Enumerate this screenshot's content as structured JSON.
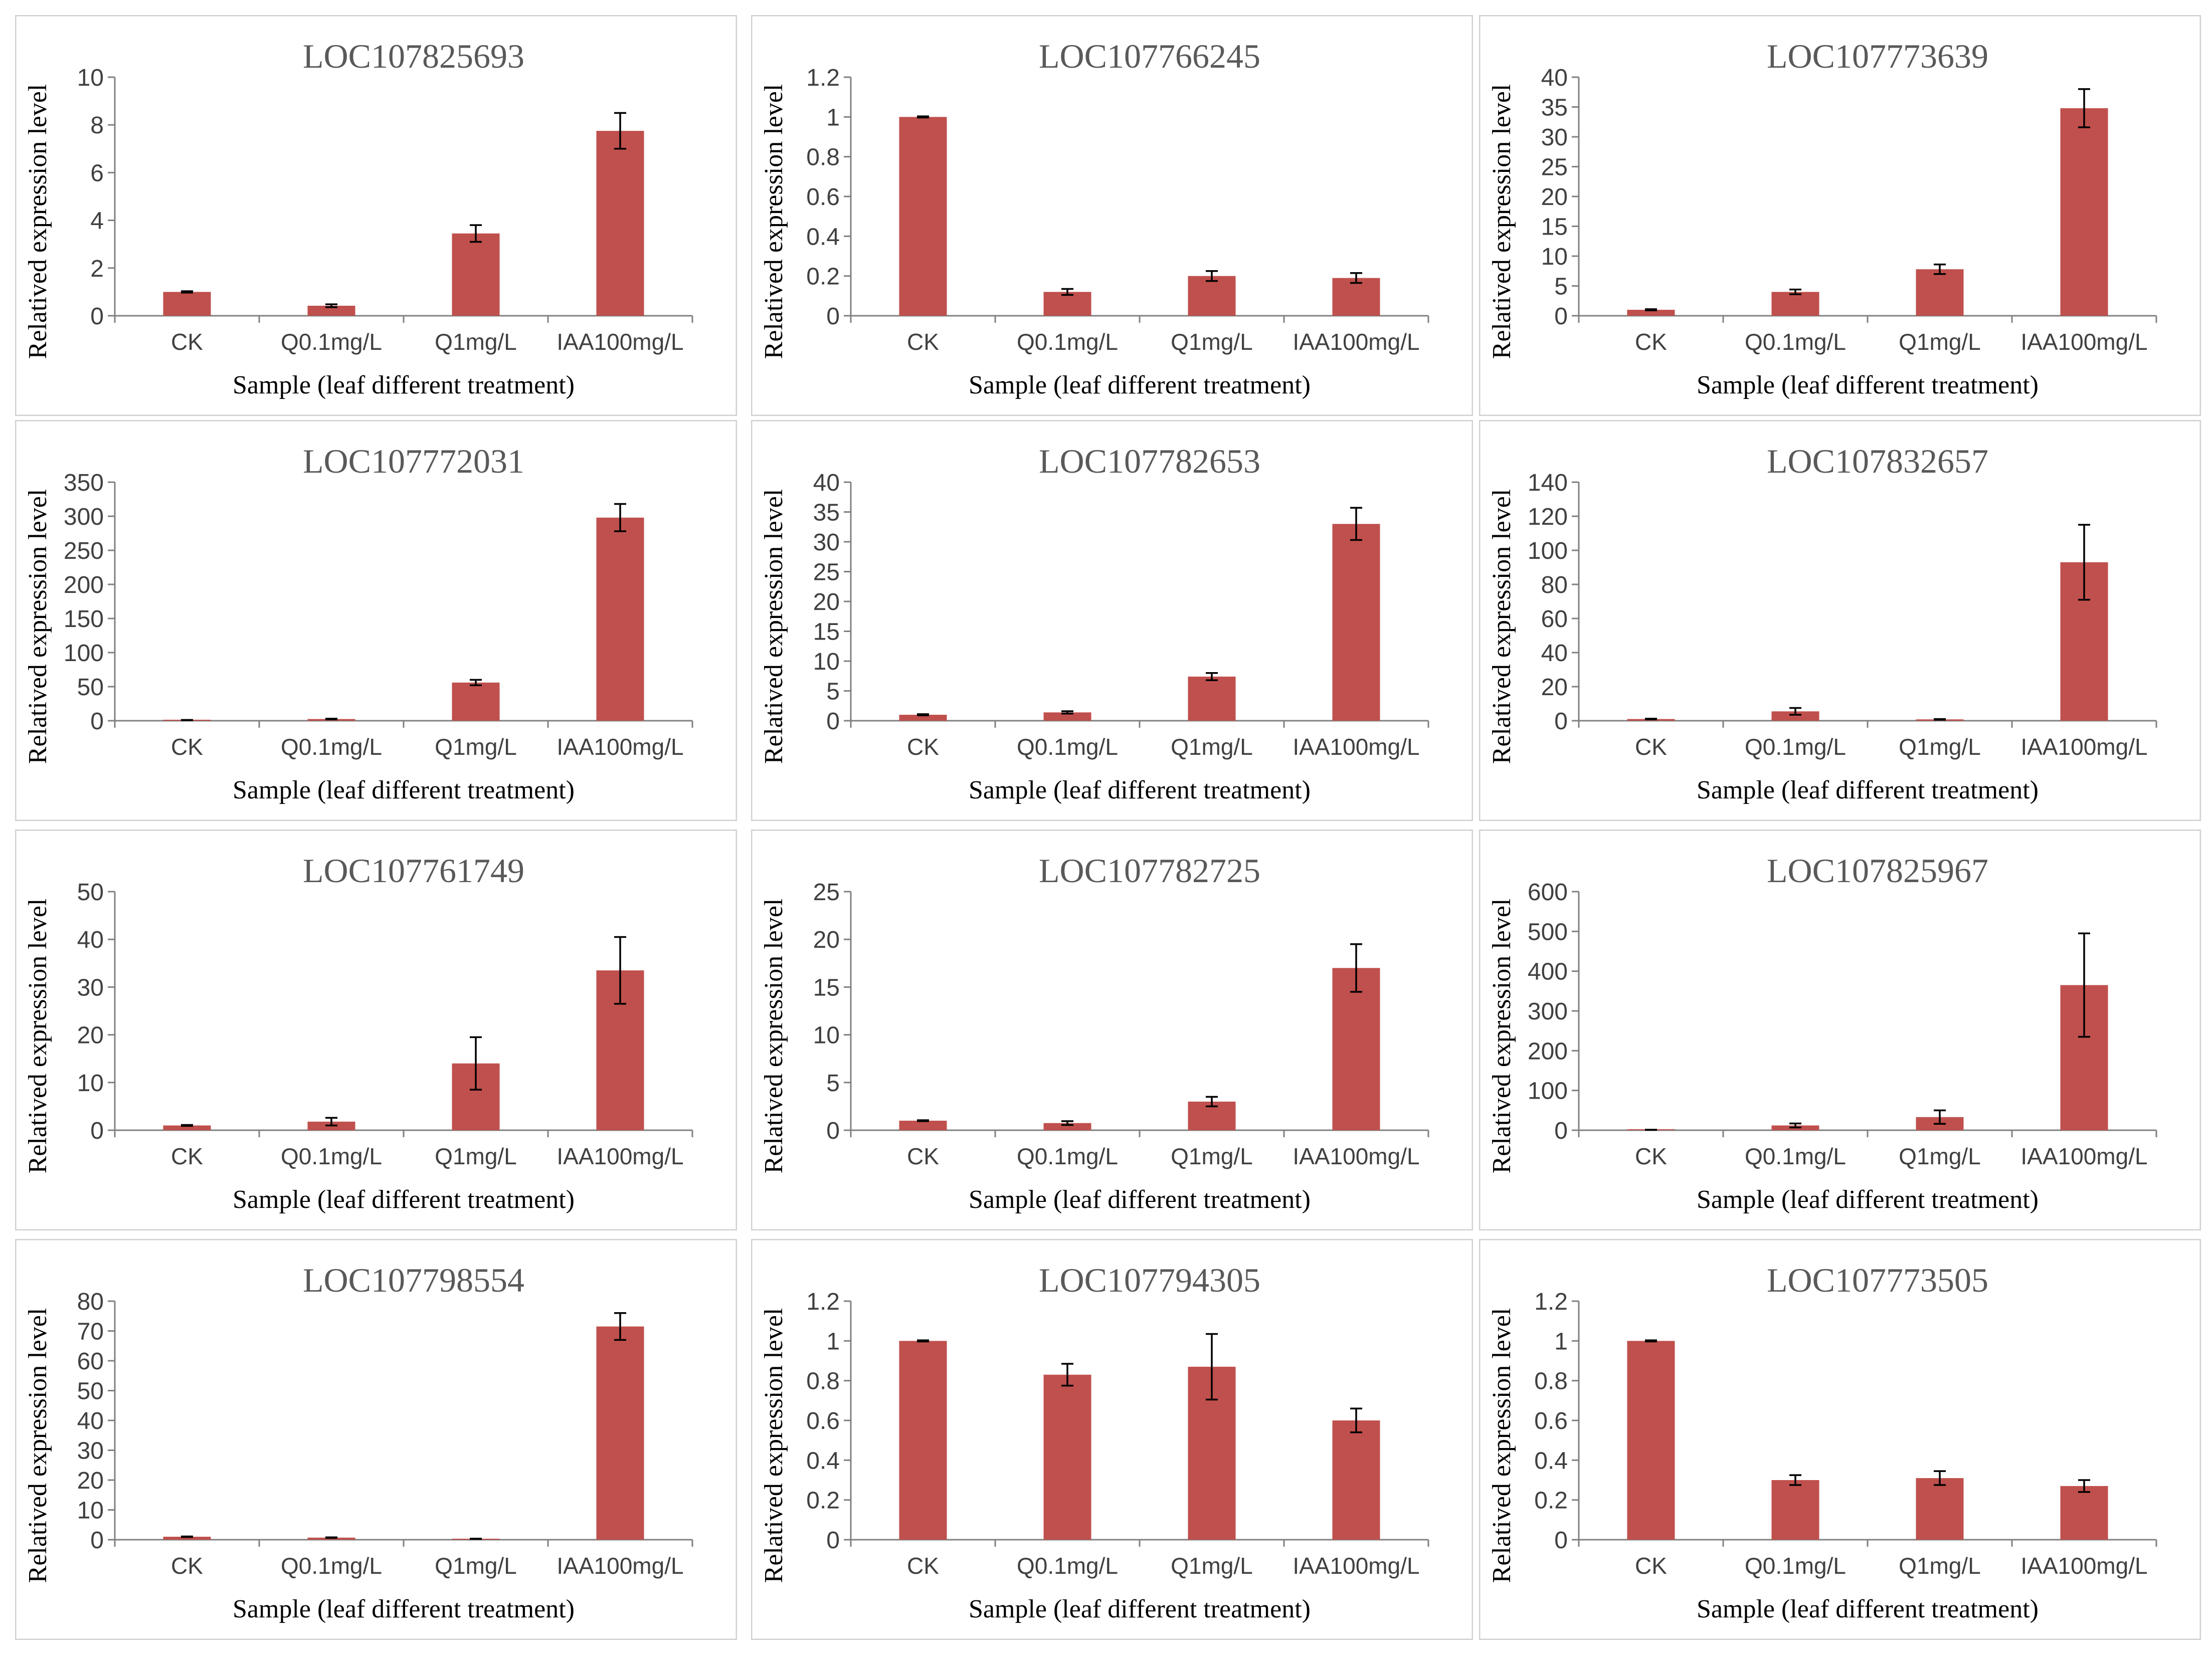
{
  "colors": {
    "bar": "#c0504d",
    "axis": "#808080",
    "frame": "#d0d0d0",
    "text": "#404040",
    "title": "#595959"
  },
  "chart_data": [
    {
      "type": "bar",
      "title": "LOC107825693",
      "xlabel": "Sample (leaf different treatment)",
      "ylabel": "Relatived expression level",
      "categories": [
        "CK",
        "Q0.1mg/L",
        "Q1mg/L",
        "IAA100mg/L"
      ],
      "values": [
        1,
        0.42,
        3.45,
        7.75
      ],
      "errors": [
        0.03,
        0.06,
        0.35,
        0.75
      ],
      "ylim": [
        0,
        10
      ],
      "yticks": [
        "0",
        "2",
        "4",
        "6",
        "8",
        "10"
      ]
    },
    {
      "type": "bar",
      "title": "LOC107766245",
      "xlabel": "Sample (leaf different treatment)",
      "ylabel": "Relatived expression level",
      "categories": [
        "CK",
        "Q0.1mg/L",
        "Q1mg/L",
        "IAA100mg/L"
      ],
      "values": [
        1,
        0.12,
        0.2,
        0.19
      ],
      "errors": [
        0.003,
        0.015,
        0.025,
        0.025
      ],
      "ylim": [
        0,
        1.2
      ],
      "yticks": [
        "0",
        "0.2",
        "0.4",
        "0.6",
        "0.8",
        "1",
        "1.2"
      ]
    },
    {
      "type": "bar",
      "title": "LOC107773639",
      "xlabel": "Sample (leaf different treatment)",
      "ylabel": "Relatived expression level",
      "categories": [
        "CK",
        "Q0.1mg/L",
        "Q1mg/L",
        "IAA100mg/L"
      ],
      "values": [
        1,
        4,
        7.8,
        34.8
      ],
      "errors": [
        0.1,
        0.4,
        0.8,
        3.2
      ],
      "ylim": [
        0,
        40
      ],
      "yticks": [
        "0",
        "5",
        "10",
        "15",
        "20",
        "25",
        "30",
        "35",
        "40"
      ]
    },
    {
      "type": "bar",
      "title": "LOC107772031",
      "xlabel": "Sample (leaf different treatment)",
      "ylabel": "Relatived expression level",
      "categories": [
        "CK",
        "Q0.1mg/L",
        "Q1mg/L",
        "IAA100mg/L"
      ],
      "values": [
        1,
        2.5,
        56,
        298
      ],
      "errors": [
        0.2,
        0.5,
        4,
        20
      ],
      "ylim": [
        0,
        350
      ],
      "yticks": [
        "0",
        "50",
        "100",
        "150",
        "200",
        "250",
        "300",
        "350"
      ]
    },
    {
      "type": "bar",
      "title": "LOC107782653",
      "xlabel": "Sample (leaf different treatment)",
      "ylabel": "Relatived expression level",
      "categories": [
        "CK",
        "Q0.1mg/L",
        "Q1mg/L",
        "IAA100mg/L"
      ],
      "values": [
        1,
        1.4,
        7.4,
        33
      ],
      "errors": [
        0.1,
        0.2,
        0.6,
        2.7
      ],
      "ylim": [
        0,
        40
      ],
      "yticks": [
        "0",
        "5",
        "10",
        "15",
        "20",
        "25",
        "30",
        "35",
        "40"
      ]
    },
    {
      "type": "bar",
      "title": "LOC107832657",
      "xlabel": "Sample (leaf different treatment)",
      "ylabel": "Relatived expression level",
      "categories": [
        "CK",
        "Q0.1mg/L",
        "Q1mg/L",
        "IAA100mg/L"
      ],
      "values": [
        1,
        5.5,
        0.8,
        93
      ],
      "errors": [
        0.2,
        2,
        0.2,
        22
      ],
      "ylim": [
        0,
        140
      ],
      "yticks": [
        "0",
        "20",
        "40",
        "60",
        "80",
        "100",
        "120",
        "140"
      ]
    },
    {
      "type": "bar",
      "title": "LOC107761749",
      "xlabel": "Sample (leaf different treatment)",
      "ylabel": "Relatived expression level",
      "categories": [
        "CK",
        "Q0.1mg/L",
        "Q1mg/L",
        "IAA100mg/L"
      ],
      "values": [
        1,
        1.8,
        14,
        33.5
      ],
      "errors": [
        0.1,
        0.8,
        5.5,
        7
      ],
      "ylim": [
        0,
        50
      ],
      "yticks": [
        "0",
        "10",
        "20",
        "30",
        "40",
        "50"
      ]
    },
    {
      "type": "bar",
      "title": "LOC107782725",
      "xlabel": "Sample (leaf different treatment)",
      "ylabel": "Relatived expression level",
      "categories": [
        "CK",
        "Q0.1mg/L",
        "Q1mg/L",
        "IAA100mg/L"
      ],
      "values": [
        1,
        0.75,
        3,
        17
      ],
      "errors": [
        0.05,
        0.2,
        0.5,
        2.5
      ],
      "ylim": [
        0,
        25
      ],
      "yticks": [
        "0",
        "5",
        "10",
        "15",
        "20",
        "25"
      ]
    },
    {
      "type": "bar",
      "title": "LOC107825967",
      "xlabel": "Sample (leaf different treatment)",
      "ylabel": "Relatived expression level",
      "categories": [
        "CK",
        "Q0.1mg/L",
        "Q1mg/L",
        "IAA100mg/L"
      ],
      "values": [
        1,
        12,
        33,
        365
      ],
      "errors": [
        0.2,
        5,
        17,
        130
      ],
      "ylim": [
        0,
        600
      ],
      "yticks": [
        "0",
        "100",
        "200",
        "300",
        "400",
        "500",
        "600"
      ]
    },
    {
      "type": "bar",
      "title": "LOC107798554",
      "xlabel": "Sample (leaf different treatment)",
      "ylabel": "Relatived expression level",
      "categories": [
        "CK",
        "Q0.1mg/L",
        "Q1mg/L",
        "IAA100mg/L"
      ],
      "values": [
        1,
        0.7,
        0.3,
        71.5
      ],
      "errors": [
        0.1,
        0.1,
        0.05,
        4.5
      ],
      "ylim": [
        0,
        80
      ],
      "yticks": [
        "0",
        "10",
        "20",
        "30",
        "40",
        "50",
        "60",
        "70",
        "80"
      ]
    },
    {
      "type": "bar",
      "title": "LOC107794305",
      "xlabel": "Sample (leaf different treatment)",
      "ylabel": "Relatived expression level",
      "categories": [
        "CK",
        "Q0.1mg/L",
        "Q1mg/L",
        "IAA100mg/L"
      ],
      "values": [
        1,
        0.83,
        0.87,
        0.6
      ],
      "errors": [
        0.003,
        0.055,
        0.165,
        0.06
      ],
      "ylim": [
        0,
        1.2
      ],
      "yticks": [
        "0",
        "0.2",
        "0.4",
        "0.6",
        "0.8",
        "1",
        "1.2"
      ]
    },
    {
      "type": "bar",
      "title": "LOC107773505",
      "xlabel": "Sample (leaf different treatment)",
      "ylabel": "Relatived expression level",
      "categories": [
        "CK",
        "Q0.1mg/L",
        "Q1mg/L",
        "IAA100mg/L"
      ],
      "values": [
        1,
        0.3,
        0.31,
        0.27
      ],
      "errors": [
        0.003,
        0.025,
        0.035,
        0.03
      ],
      "ylim": [
        0,
        1.2
      ],
      "yticks": [
        "0",
        "0.2",
        "0.4",
        "0.6",
        "0.8",
        "1",
        "1.2"
      ]
    }
  ]
}
